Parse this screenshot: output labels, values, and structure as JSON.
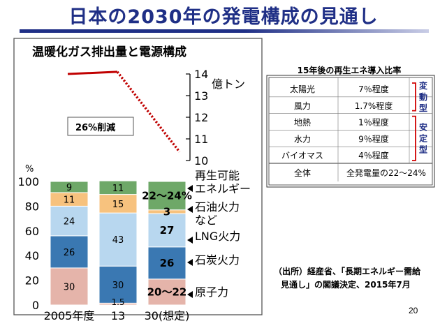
{
  "slide": {
    "title": "日本の2030年の発電構成の見通し",
    "page_number": "20",
    "source_line1": "（出所）経産省、「長期エネルギー需給",
    "source_line2": "見通し」の閣議決定、2015年7月"
  },
  "chart_data": [
    {
      "type": "bar",
      "title": "温暖化ガス排出量と電源構成",
      "categories": [
        "2005年度",
        "13",
        "30(想定)"
      ],
      "ylabel": "%",
      "ylim": [
        0,
        100
      ],
      "yticks": [
        "0",
        "20",
        "40",
        "60",
        "80",
        "100"
      ],
      "stack_order": [
        "原子力",
        "石炭火力",
        "LNG火力",
        "石油火力など",
        "再生可能エネルギー"
      ],
      "series": [
        {
          "name": "原子力",
          "values": [
            30,
            1.5,
            21
          ],
          "labels": [
            "30",
            "1.5",
            "20～22"
          ],
          "color": "#e5b4aa"
        },
        {
          "name": "石炭火力",
          "values": [
            26,
            30,
            26
          ],
          "labels": [
            "26",
            "30",
            "26"
          ],
          "color": "#3a78b2"
        },
        {
          "name": "LNG火力",
          "values": [
            24,
            43,
            27
          ],
          "labels": [
            "24",
            "43",
            "27"
          ],
          "color": "#b8d7ef"
        },
        {
          "name": "石油火力など",
          "values": [
            11,
            15,
            3
          ],
          "labels": [
            "11",
            "15",
            "3"
          ],
          "color": "#f7c27e"
        },
        {
          "name": "再生可能エネルギー",
          "values": [
            9,
            11,
            23
          ],
          "labels": [
            "9",
            "11",
            "22～24%"
          ],
          "color": "#6ea868"
        }
      ],
      "legend": [
        {
          "name": "再生可能\nエネルギー"
        },
        {
          "name": "石油火力\nなど"
        },
        {
          "name": "LNG火力"
        },
        {
          "name": "石炭火力"
        },
        {
          "name": "原子力"
        }
      ],
      "legend_position": "right"
    },
    {
      "type": "line",
      "ylabel": "億トン",
      "ylim": [
        10,
        14
      ],
      "yticks": [
        "10",
        "11",
        "12",
        "13",
        "14"
      ],
      "x": [
        "2005年度",
        "13",
        "30(想定)"
      ],
      "series": [
        {
          "name": "",
          "values": [
            14.0,
            14.1,
            10.4
          ],
          "styles": [
            "solid",
            "dotted"
          ],
          "color": "#c00000"
        }
      ],
      "annotation": "26%削減"
    },
    {
      "type": "table",
      "title": "15年後の再生エネ導入比率",
      "rows": [
        {
          "name": "太陽光",
          "value": "7％程度"
        },
        {
          "name": "風力",
          "value": "1.7%程度"
        },
        {
          "name": "地熱",
          "value": "1％程度"
        },
        {
          "name": "水力",
          "value": "9％程度"
        },
        {
          "name": "バイオマス",
          "value": "4％程度"
        }
      ],
      "total": {
        "name": "全体",
        "value": "全発電量の22～24%"
      },
      "groups": [
        {
          "name": "変動型",
          "rows": [
            0,
            1
          ]
        },
        {
          "name": "安定型",
          "rows": [
            2,
            3,
            4
          ]
        }
      ]
    }
  ]
}
